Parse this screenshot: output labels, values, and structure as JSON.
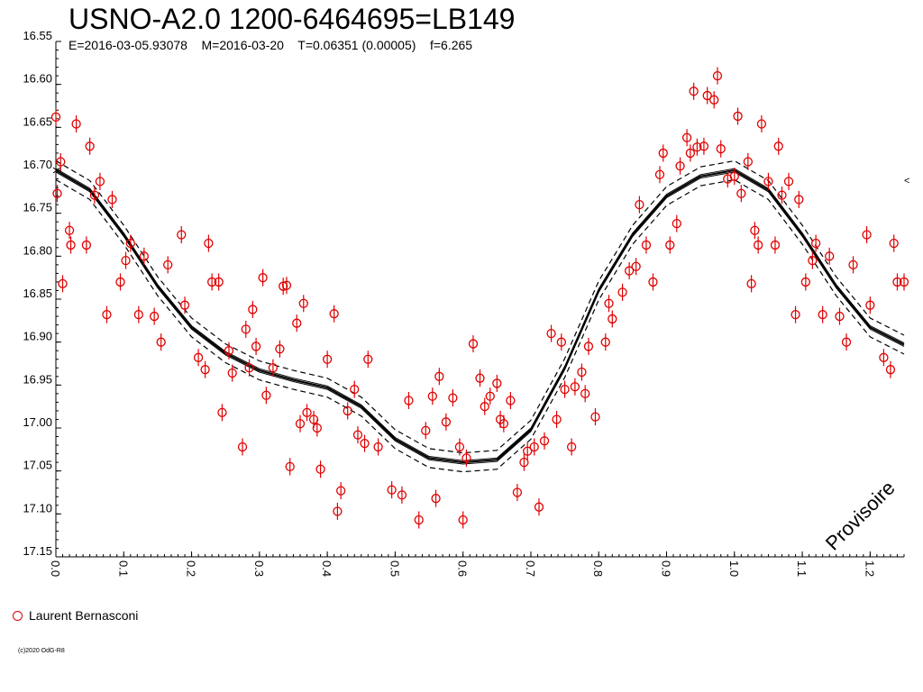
{
  "header": {
    "title": "USNO-A2.0 1200-6464695=LB149",
    "subtitle": "E=2016-03-05.93078    M=2016-03-20    T=0.06351 (0.00005)    f=6.265"
  },
  "legend": {
    "observer": "Laurent Bernasconi",
    "marker_color": "#e00000"
  },
  "credit": "(c)2020 OdG-R8",
  "watermark": "Provisoire",
  "edge_marker": "<",
  "chart_data": {
    "type": "scatter",
    "title": "USNO-A2.0 1200-6464695=LB149",
    "xlabel": "",
    "ylabel": "",
    "xlim": [
      0.0,
      1.25
    ],
    "ylim": [
      16.55,
      17.15
    ],
    "y_inverted": true,
    "grid": false,
    "legend_position": "bottom-left",
    "x_ticks": [
      "0.0",
      "0.1",
      "0.2",
      "0.3",
      "0.4",
      "0.5",
      "0.6",
      "0.7",
      "0.8",
      "0.9",
      "1.0",
      "1.1",
      "1.2"
    ],
    "y_ticks": [
      "16.55",
      "16.60",
      "16.65",
      "16.70",
      "16.75",
      "16.80",
      "16.85",
      "16.90",
      "16.95",
      "17.00",
      "17.05",
      "17.10",
      "17.15"
    ],
    "series": [
      {
        "name": "Laurent Bernasconi",
        "color": "#e00000",
        "marker": "open-circle-with-errorbar",
        "error": 0.01,
        "points": [
          [
            0.0,
            16.638
          ],
          [
            0.002,
            16.727
          ],
          [
            0.007,
            16.69
          ],
          [
            0.01,
            16.832
          ],
          [
            0.02,
            16.77
          ],
          [
            0.022,
            16.787
          ],
          [
            0.03,
            16.646
          ],
          [
            0.045,
            16.787
          ],
          [
            0.05,
            16.672
          ],
          [
            0.057,
            16.729
          ],
          [
            0.065,
            16.713
          ],
          [
            0.075,
            16.868
          ],
          [
            0.083,
            16.734
          ],
          [
            0.095,
            16.83
          ],
          [
            0.103,
            16.805
          ],
          [
            0.11,
            16.785
          ],
          [
            0.122,
            16.868
          ],
          [
            0.13,
            16.8
          ],
          [
            0.145,
            16.87
          ],
          [
            0.155,
            16.9
          ],
          [
            0.165,
            16.81
          ],
          [
            0.185,
            16.775
          ],
          [
            0.19,
            16.857
          ],
          [
            0.21,
            16.918
          ],
          [
            0.22,
            16.932
          ],
          [
            0.225,
            16.785
          ],
          [
            0.23,
            16.83
          ],
          [
            0.24,
            16.83
          ],
          [
            0.245,
            16.982
          ],
          [
            0.255,
            16.91
          ],
          [
            0.26,
            16.936
          ],
          [
            0.275,
            17.022
          ],
          [
            0.28,
            16.885
          ],
          [
            0.285,
            16.93
          ],
          [
            0.29,
            16.862
          ],
          [
            0.295,
            16.905
          ],
          [
            0.305,
            16.825
          ],
          [
            0.31,
            16.962
          ],
          [
            0.32,
            16.93
          ],
          [
            0.33,
            16.908
          ],
          [
            0.335,
            16.835
          ],
          [
            0.34,
            16.834
          ],
          [
            0.345,
            17.045
          ],
          [
            0.355,
            16.878
          ],
          [
            0.36,
            16.995
          ],
          [
            0.365,
            16.855
          ],
          [
            0.37,
            16.982
          ],
          [
            0.38,
            16.99
          ],
          [
            0.385,
            17.0
          ],
          [
            0.39,
            17.048
          ],
          [
            0.4,
            16.92
          ],
          [
            0.41,
            16.867
          ],
          [
            0.415,
            17.097
          ],
          [
            0.42,
            17.073
          ],
          [
            0.43,
            16.98
          ],
          [
            0.44,
            16.955
          ],
          [
            0.445,
            17.008
          ],
          [
            0.455,
            17.018
          ],
          [
            0.46,
            16.92
          ],
          [
            0.475,
            17.022
          ],
          [
            0.495,
            17.072
          ],
          [
            0.51,
            17.078
          ],
          [
            0.52,
            16.968
          ],
          [
            0.535,
            17.107
          ],
          [
            0.545,
            17.003
          ],
          [
            0.555,
            16.963
          ],
          [
            0.56,
            17.082
          ],
          [
            0.565,
            16.94
          ],
          [
            0.575,
            16.993
          ],
          [
            0.585,
            16.965
          ],
          [
            0.595,
            17.022
          ],
          [
            0.6,
            17.107
          ],
          [
            0.605,
            17.035
          ],
          [
            0.615,
            16.902
          ],
          [
            0.625,
            16.942
          ],
          [
            0.632,
            16.975
          ],
          [
            0.64,
            16.963
          ],
          [
            0.65,
            16.948
          ],
          [
            0.655,
            16.99
          ],
          [
            0.66,
            16.995
          ],
          [
            0.67,
            16.968
          ],
          [
            0.68,
            17.075
          ],
          [
            0.69,
            17.04
          ],
          [
            0.695,
            17.027
          ],
          [
            0.705,
            17.022
          ],
          [
            0.712,
            17.092
          ],
          [
            0.72,
            17.015
          ],
          [
            0.73,
            16.89
          ],
          [
            0.738,
            16.99
          ],
          [
            0.745,
            16.9
          ],
          [
            0.75,
            16.955
          ],
          [
            0.76,
            17.022
          ],
          [
            0.765,
            16.952
          ],
          [
            0.775,
            16.935
          ],
          [
            0.78,
            16.96
          ],
          [
            0.785,
            16.905
          ],
          [
            0.795,
            16.987
          ],
          [
            0.81,
            16.9
          ],
          [
            0.815,
            16.855
          ],
          [
            0.82,
            16.873
          ],
          [
            0.835,
            16.842
          ],
          [
            0.845,
            16.817
          ],
          [
            0.855,
            16.812
          ],
          [
            0.86,
            16.74
          ],
          [
            0.87,
            16.787
          ],
          [
            0.88,
            16.83
          ],
          [
            0.89,
            16.705
          ],
          [
            0.895,
            16.68
          ],
          [
            0.905,
            16.787
          ],
          [
            0.915,
            16.762
          ],
          [
            0.92,
            16.695
          ],
          [
            0.93,
            16.662
          ],
          [
            0.935,
            16.68
          ],
          [
            0.94,
            16.608
          ],
          [
            0.945,
            16.673
          ],
          [
            0.955,
            16.672
          ],
          [
            0.96,
            16.613
          ],
          [
            0.97,
            16.618
          ],
          [
            0.975,
            16.59
          ],
          [
            0.98,
            16.675
          ],
          [
            0.99,
            16.71
          ],
          [
            1.0,
            16.707
          ],
          [
            1.005,
            16.637
          ],
          [
            1.01,
            16.727
          ],
          [
            1.02,
            16.69
          ],
          [
            1.025,
            16.832
          ],
          [
            1.03,
            16.77
          ],
          [
            1.035,
            16.787
          ],
          [
            1.04,
            16.646
          ],
          [
            1.05,
            16.713
          ],
          [
            1.06,
            16.787
          ],
          [
            1.065,
            16.672
          ],
          [
            1.07,
            16.729
          ],
          [
            1.08,
            16.713
          ],
          [
            1.09,
            16.868
          ],
          [
            1.095,
            16.734
          ],
          [
            1.105,
            16.83
          ],
          [
            1.115,
            16.805
          ],
          [
            1.12,
            16.785
          ],
          [
            1.13,
            16.868
          ],
          [
            1.14,
            16.8
          ],
          [
            1.155,
            16.87
          ],
          [
            1.165,
            16.9
          ],
          [
            1.175,
            16.81
          ],
          [
            1.195,
            16.775
          ],
          [
            1.2,
            16.857
          ],
          [
            1.22,
            16.918
          ],
          [
            1.23,
            16.932
          ],
          [
            1.235,
            16.785
          ],
          [
            1.24,
            16.83
          ],
          [
            1.25,
            16.83
          ]
        ]
      },
      {
        "name": "",
        "type": "line",
        "style": "solid",
        "x": [
          0.0,
          0.05,
          0.1,
          0.15,
          0.2,
          0.25,
          0.3,
          0.35,
          0.4,
          0.45,
          0.5,
          0.55,
          0.6,
          0.65,
          0.7,
          0.75,
          0.8,
          0.85,
          0.9,
          0.95,
          1.0,
          1.05,
          1.1,
          1.15,
          1.2,
          1.25
        ],
        "y": [
          16.7,
          16.723,
          16.775,
          16.835,
          16.883,
          16.913,
          16.933,
          16.944,
          16.953,
          16.975,
          17.013,
          17.035,
          17.04,
          17.037,
          17.002,
          16.93,
          16.84,
          16.775,
          16.73,
          16.707,
          16.7,
          16.723,
          16.775,
          16.835,
          16.883,
          16.903
        ]
      }
    ],
    "band_offset": 0.011
  }
}
